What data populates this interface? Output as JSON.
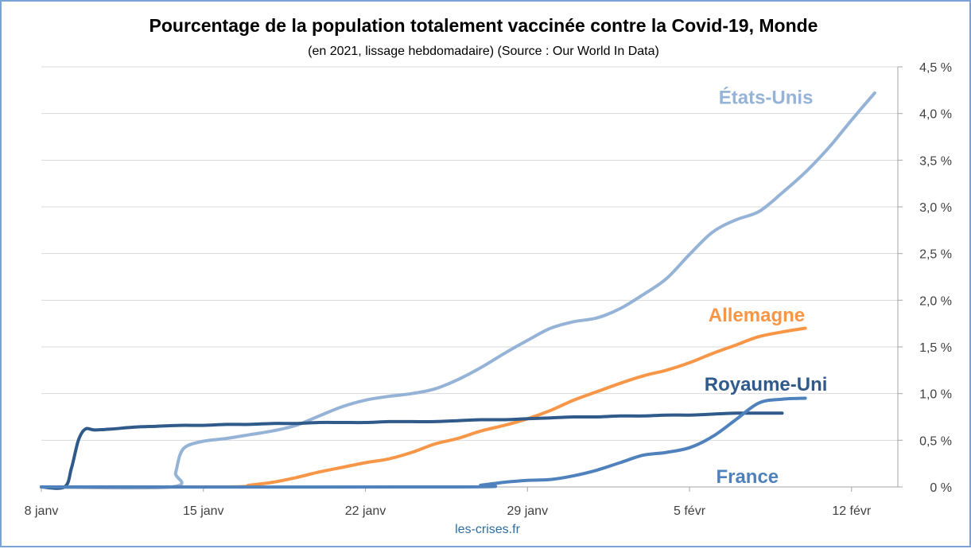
{
  "chart_data": {
    "type": "line",
    "title": "Pourcentage de la population totalement vaccinée contre la Covid-19, Monde",
    "subtitle": "(en 2021, lissage hebdomadaire) (Source : Our World In Data)",
    "source_note": "les-crises.fr",
    "x_ticks": [
      "8 janv",
      "15 janv",
      "22 janv",
      "29 janv",
      "5 févr",
      "12 févr"
    ],
    "x_tick_days": [
      0,
      7,
      14,
      21,
      28,
      35
    ],
    "xlim_days": [
      0,
      37
    ],
    "y_ticks": [
      "0 %",
      "0,5 %",
      "1,0 %",
      "1,5 %",
      "2,0 %",
      "2,5 %",
      "3,0 %",
      "3,5 %",
      "4,0 %",
      "4,5 %"
    ],
    "ylim": [
      0,
      4.5
    ],
    "y_unit": "%",
    "y_axis_position": "right",
    "grid": true,
    "legend": "inline labels at line ends",
    "series": [
      {
        "name": "États-Unis",
        "color": "#95b3d7",
        "points": [
          [
            0,
            0
          ],
          [
            5.6,
            0
          ],
          [
            5.8,
            0.15
          ],
          [
            6,
            0.35
          ],
          [
            6.3,
            0.44
          ],
          [
            7,
            0.49
          ],
          [
            8,
            0.52
          ],
          [
            9,
            0.56
          ],
          [
            10,
            0.6
          ],
          [
            11,
            0.66
          ],
          [
            12,
            0.76
          ],
          [
            13,
            0.86
          ],
          [
            14,
            0.93
          ],
          [
            15,
            0.97
          ],
          [
            16,
            1.0
          ],
          [
            17,
            1.05
          ],
          [
            18,
            1.15
          ],
          [
            19,
            1.28
          ],
          [
            20,
            1.43
          ],
          [
            21,
            1.57
          ],
          [
            22,
            1.7
          ],
          [
            23,
            1.77
          ],
          [
            24,
            1.81
          ],
          [
            25,
            1.91
          ],
          [
            26,
            2.06
          ],
          [
            27,
            2.23
          ],
          [
            28,
            2.49
          ],
          [
            29,
            2.73
          ],
          [
            30,
            2.86
          ],
          [
            31,
            2.95
          ],
          [
            32,
            3.15
          ],
          [
            33,
            3.37
          ],
          [
            34,
            3.63
          ],
          [
            35,
            3.93
          ],
          [
            36,
            4.22
          ]
        ]
      },
      {
        "name": "Allemagne",
        "color": "#f79646",
        "points": [
          [
            0,
            0
          ],
          [
            8,
            0
          ],
          [
            9,
            0.02
          ],
          [
            10,
            0.05
          ],
          [
            11,
            0.1
          ],
          [
            12,
            0.16
          ],
          [
            13,
            0.21
          ],
          [
            14,
            0.26
          ],
          [
            15,
            0.3
          ],
          [
            16,
            0.37
          ],
          [
            17,
            0.46
          ],
          [
            18,
            0.52
          ],
          [
            19,
            0.6
          ],
          [
            20,
            0.66
          ],
          [
            21,
            0.73
          ],
          [
            22,
            0.82
          ],
          [
            23,
            0.93
          ],
          [
            24,
            1.02
          ],
          [
            25,
            1.11
          ],
          [
            26,
            1.19
          ],
          [
            27,
            1.25
          ],
          [
            28,
            1.33
          ],
          [
            29,
            1.43
          ],
          [
            30,
            1.52
          ],
          [
            31,
            1.61
          ],
          [
            32,
            1.66
          ],
          [
            33,
            1.7
          ]
        ]
      },
      {
        "name": "Royaume-Uni",
        "color": "#2f5a8a",
        "points": [
          [
            0,
            0
          ],
          [
            1,
            0
          ],
          [
            1.3,
            0.2
          ],
          [
            1.6,
            0.5
          ],
          [
            1.9,
            0.62
          ],
          [
            2.3,
            0.61
          ],
          [
            3,
            0.62
          ],
          [
            4,
            0.64
          ],
          [
            5,
            0.65
          ],
          [
            6,
            0.66
          ],
          [
            7,
            0.66
          ],
          [
            8,
            0.67
          ],
          [
            9,
            0.67
          ],
          [
            10,
            0.68
          ],
          [
            11,
            0.68
          ],
          [
            12,
            0.69
          ],
          [
            13,
            0.69
          ],
          [
            14,
            0.69
          ],
          [
            15,
            0.7
          ],
          [
            16,
            0.7
          ],
          [
            17,
            0.7
          ],
          [
            18,
            0.71
          ],
          [
            19,
            0.72
          ],
          [
            20,
            0.72
          ],
          [
            21,
            0.73
          ],
          [
            22,
            0.74
          ],
          [
            23,
            0.75
          ],
          [
            24,
            0.75
          ],
          [
            25,
            0.76
          ],
          [
            26,
            0.76
          ],
          [
            27,
            0.77
          ],
          [
            28,
            0.77
          ],
          [
            29,
            0.78
          ],
          [
            30,
            0.79
          ],
          [
            31,
            0.79
          ],
          [
            32,
            0.79
          ]
        ]
      },
      {
        "name": "France",
        "color": "#4f81bd",
        "points": [
          [
            0,
            0
          ],
          [
            18,
            0
          ],
          [
            19,
            0.02
          ],
          [
            20,
            0.05
          ],
          [
            21,
            0.07
          ],
          [
            22,
            0.08
          ],
          [
            23,
            0.12
          ],
          [
            24,
            0.18
          ],
          [
            25,
            0.26
          ],
          [
            26,
            0.34
          ],
          [
            27,
            0.37
          ],
          [
            28,
            0.42
          ],
          [
            29,
            0.54
          ],
          [
            30,
            0.72
          ],
          [
            31,
            0.9
          ],
          [
            32,
            0.94
          ],
          [
            33,
            0.95
          ]
        ]
      }
    ],
    "labels": [
      {
        "series": "États-Unis",
        "text": "États-Unis",
        "at_day": 31.3,
        "at_value": 4.18
      },
      {
        "series": "Allemagne",
        "text": "Allemagne",
        "at_day": 30.9,
        "at_value": 1.85
      },
      {
        "series": "Royaume-Uni",
        "text": "Royaume-Uni",
        "at_day": 31.3,
        "at_value": 1.11
      },
      {
        "series": "France",
        "text": "France",
        "at_day": 30.5,
        "at_value": 0.12
      }
    ]
  }
}
